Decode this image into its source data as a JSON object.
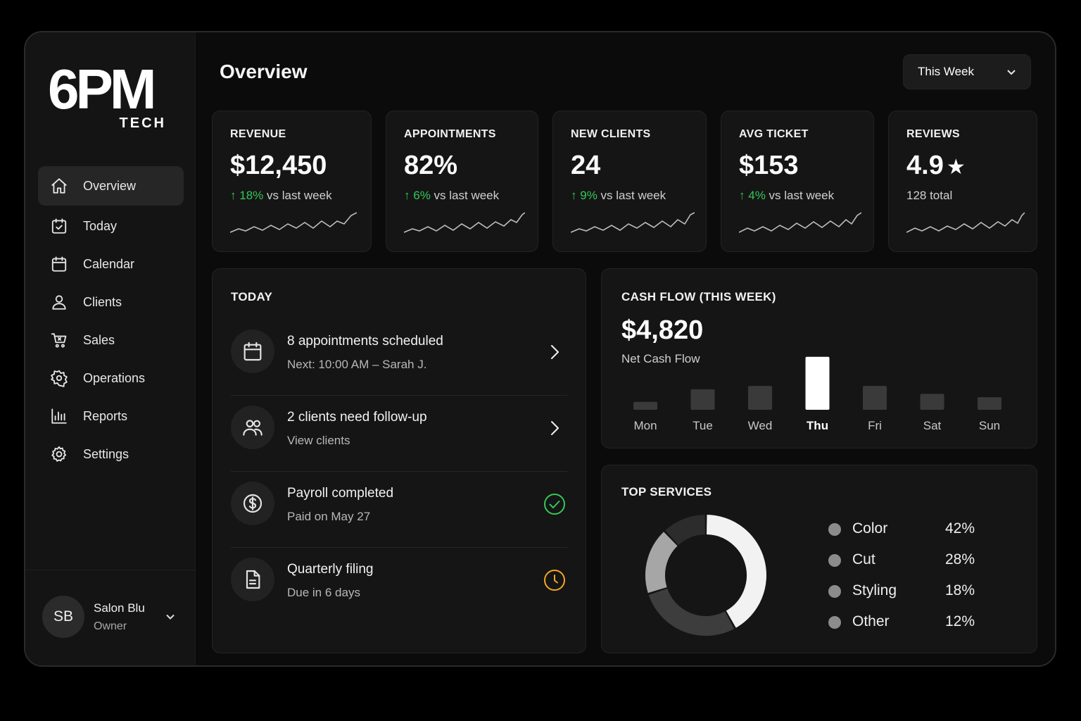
{
  "brand": {
    "name": "6PM",
    "sub": "TECH"
  },
  "nav": [
    {
      "label": "Overview",
      "icon": "home-icon",
      "active": true
    },
    {
      "label": "Today",
      "icon": "calendar-check-icon"
    },
    {
      "label": "Calendar",
      "icon": "calendar-icon"
    },
    {
      "label": "Clients",
      "icon": "user-icon"
    },
    {
      "label": "Sales",
      "icon": "cart-icon"
    },
    {
      "label": "Operations",
      "icon": "settings-flower-icon"
    },
    {
      "label": "Reports",
      "icon": "chart-icon"
    },
    {
      "label": "Settings",
      "icon": "gear-icon"
    }
  ],
  "user": {
    "initials": "SB",
    "name": "Salon Blu",
    "role": "Owner"
  },
  "header": {
    "title": "Overview",
    "range": "This Week"
  },
  "kpis": [
    {
      "label": "REVENUE",
      "value": "$12,450",
      "change": "18%",
      "suffix": "vs last week"
    },
    {
      "label": "APPOINTMENTS",
      "value": "82%",
      "change": "6%",
      "suffix": "vs last week"
    },
    {
      "label": "NEW CLIENTS",
      "value": "24",
      "change": "9%",
      "suffix": "vs last week"
    },
    {
      "label": "AVG TICKET",
      "value": "$153",
      "change": "4%",
      "suffix": "vs last week"
    },
    {
      "label": "REVIEWS",
      "value": "4.9",
      "star": "★",
      "sub": "128 total"
    }
  ],
  "today": {
    "title": "TODAY",
    "items": [
      {
        "title": "8 appointments scheduled",
        "sub": "Next: 10:00 AM – Sarah J.",
        "icon": "calendar-icon",
        "action": "chevron-right-icon"
      },
      {
        "title": "2 clients need follow-up",
        "sub": "View clients",
        "icon": "users-icon",
        "action": "chevron-right-icon"
      },
      {
        "title": "Payroll completed",
        "sub": "Paid on May 27",
        "icon": "dollar-icon",
        "action": "check-circle-icon"
      },
      {
        "title": "Quarterly filing",
        "sub": "Due in 6 days",
        "icon": "document-icon",
        "action": "clock-icon"
      }
    ]
  },
  "cashflow": {
    "title": "CASH FLOW (THIS WEEK)",
    "value": "$4,820",
    "sub": "Net Cash Flow"
  },
  "services": {
    "title": "TOP SERVICES",
    "items": [
      {
        "name": "Color",
        "pct": "42%"
      },
      {
        "name": "Cut",
        "pct": "28%"
      },
      {
        "name": "Styling",
        "pct": "18%"
      },
      {
        "name": "Other",
        "pct": "12%"
      }
    ]
  },
  "colors": {
    "positive": "#35c759",
    "warning": "#f5a623",
    "bar": "#3a3a3a",
    "bar_highlight": "#ffffff",
    "donut": [
      "#f2f2f2",
      "#3d3d3d",
      "#a6a6a6",
      "#2c2c2c"
    ]
  },
  "chart_data": [
    {
      "type": "bar",
      "categories": [
        "Mon",
        "Tue",
        "Wed",
        "Thu",
        "Fri",
        "Sat",
        "Sun"
      ],
      "values": [
        12,
        31,
        36,
        80,
        36,
        24,
        19
      ],
      "highlight": "Thu",
      "ylim": [
        0,
        85
      ],
      "grid": false
    },
    {
      "type": "pie",
      "categories": [
        "Color",
        "Cut",
        "Styling",
        "Other"
      ],
      "values": [
        42,
        28,
        18,
        12
      ]
    }
  ]
}
